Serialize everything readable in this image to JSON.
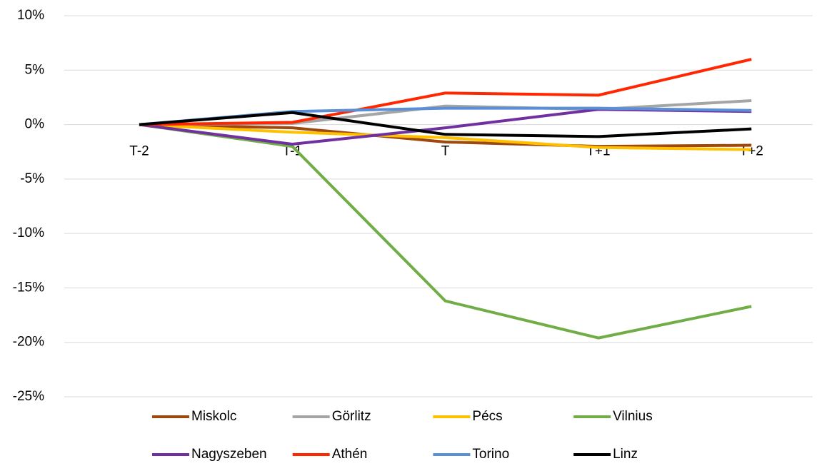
{
  "chart_data": {
    "type": "line",
    "categories": [
      "T-2",
      "T-1",
      "T",
      "T+1",
      "T+2"
    ],
    "ylim": [
      -25,
      10
    ],
    "yticks": [
      {
        "value": 10,
        "label": "10%"
      },
      {
        "value": 5,
        "label": "5%"
      },
      {
        "value": 0,
        "label": "0%"
      },
      {
        "value": -5,
        "label": "-5%"
      },
      {
        "value": -10,
        "label": "-10%"
      },
      {
        "value": -15,
        "label": "-15%"
      },
      {
        "value": -20,
        "label": "-20%"
      },
      {
        "value": -25,
        "label": "-25%"
      }
    ],
    "grid": true,
    "legend": "bottom",
    "series": [
      {
        "name": "Miskolc",
        "color": "#9e480e",
        "values": [
          0,
          -0.3,
          -1.6,
          -2.0,
          -1.9
        ]
      },
      {
        "name": "Görlitz",
        "color": "#a5a5a5",
        "values": [
          0,
          0.1,
          1.7,
          1.4,
          2.2
        ]
      },
      {
        "name": "Pécs",
        "color": "#ffc000",
        "values": [
          0,
          -0.7,
          -1.2,
          -2.1,
          -2.3
        ]
      },
      {
        "name": "Vilnius",
        "color": "#70ad47",
        "values": [
          0,
          -2.0,
          -16.2,
          -19.6,
          -16.7
        ]
      },
      {
        "name": "Nagyszeben",
        "color": "#7030a0",
        "values": [
          0,
          -1.8,
          -0.3,
          1.4,
          1.2
        ]
      },
      {
        "name": "Athén",
        "color": "#ff2600",
        "values": [
          0,
          0.2,
          2.9,
          2.7,
          6.0
        ]
      },
      {
        "name": "Torino",
        "color": "#5b8fd5",
        "values": [
          0,
          1.2,
          1.5,
          1.5,
          1.3
        ]
      },
      {
        "name": "Linz",
        "color": "#000000",
        "values": [
          0,
          1.1,
          -0.9,
          -1.1,
          -0.4
        ]
      }
    ]
  }
}
